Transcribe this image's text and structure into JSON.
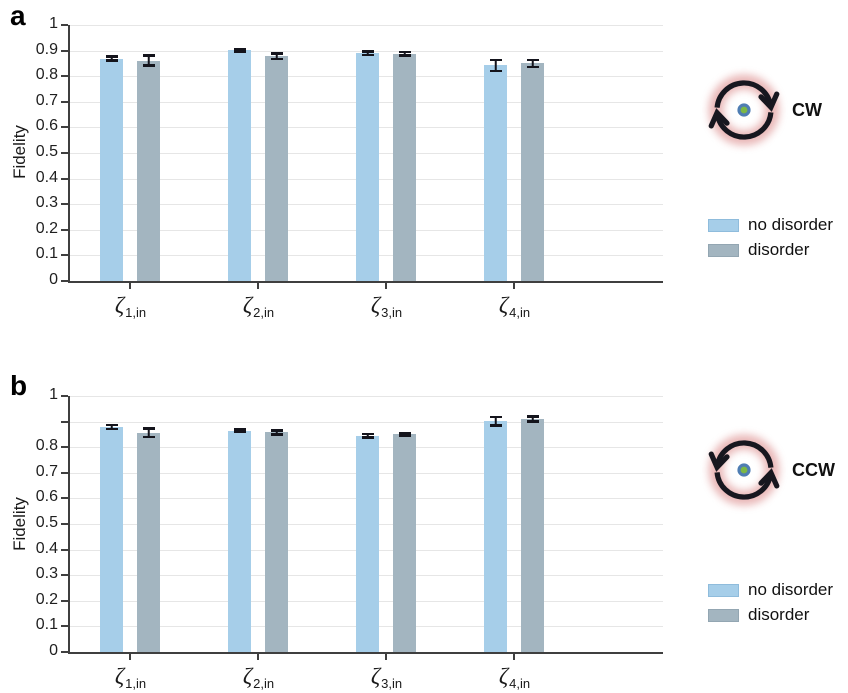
{
  "colors": {
    "no_disorder": "#a6cee9",
    "no_disorder_border": "#8fbcdc",
    "disorder": "#a3b5c0",
    "disorder_border": "#93a6b2",
    "error_bar": "#14141c",
    "grid": "#e6e6e6",
    "axis": "#3f3f3f",
    "icon_ring": "#17171f",
    "icon_glow": "#d87f7f",
    "icon_dot_fill": "#7cb845",
    "icon_dot_ring": "#4f7db3"
  },
  "chart_data": [
    {
      "type": "bar",
      "panel_letter": "a",
      "annotation": "CW",
      "ylabel": "Fidelity",
      "xlabel": "",
      "ylim": [
        0,
        1
      ],
      "grid": true,
      "legend_position": "right",
      "y_tick_labels": [
        "1",
        "0.9",
        "0.8",
        "0.7",
        "0.6",
        "0.5",
        "0.4",
        "0.3",
        "0.2",
        "0.1",
        "0"
      ],
      "categories": [
        "ζ1,in",
        "ζ2,in",
        "ζ3,in",
        "ζ4,in"
      ],
      "categories_fmt": [
        {
          "base": "ζ",
          "sub": "1,in"
        },
        {
          "base": "ζ",
          "sub": "2,in"
        },
        {
          "base": "ζ",
          "sub": "3,in"
        },
        {
          "base": "ζ",
          "sub": "4,in"
        }
      ],
      "series": [
        {
          "name": "no disorder",
          "color": "#a6cee9",
          "border": "#8fbcdc",
          "values": [
            0.869,
            0.902,
            0.889,
            0.842
          ],
          "errors": [
            0.013,
            0.01,
            0.012,
            0.026
          ]
        },
        {
          "name": "disorder",
          "color": "#a3b5c0",
          "border": "#93a6b2",
          "values": [
            0.861,
            0.878,
            0.887,
            0.85
          ],
          "errors": [
            0.024,
            0.015,
            0.012,
            0.019
          ]
        }
      ]
    },
    {
      "type": "bar",
      "panel_letter": "b",
      "annotation": "CCW",
      "ylabel": "Fidelity",
      "xlabel": "",
      "ylim": [
        0,
        1
      ],
      "grid": true,
      "legend_position": "right",
      "y_tick_labels": [
        "1",
        "",
        "0.8",
        "0.7",
        "0.6",
        "0.5",
        "0.4",
        "0.3",
        "0.2",
        "0.1",
        "0"
      ],
      "categories": [
        "ζ1,in",
        "ζ2,in",
        "ζ3,in",
        "ζ4,in"
      ],
      "categories_fmt": [
        {
          "base": "ζ",
          "sub": "1,in"
        },
        {
          "base": "ζ",
          "sub": "2,in"
        },
        {
          "base": "ζ",
          "sub": "3,in"
        },
        {
          "base": "ζ",
          "sub": "4,in"
        }
      ],
      "series": [
        {
          "name": "no disorder",
          "color": "#a6cee9",
          "border": "#8fbcdc",
          "values": [
            0.879,
            0.865,
            0.845,
            0.901
          ],
          "errors": [
            0.013,
            0.009,
            0.012,
            0.021
          ]
        },
        {
          "name": "disorder",
          "color": "#a3b5c0",
          "border": "#93a6b2",
          "values": [
            0.856,
            0.858,
            0.85,
            0.91
          ],
          "errors": [
            0.022,
            0.013,
            0.009,
            0.015
          ]
        }
      ]
    }
  ]
}
